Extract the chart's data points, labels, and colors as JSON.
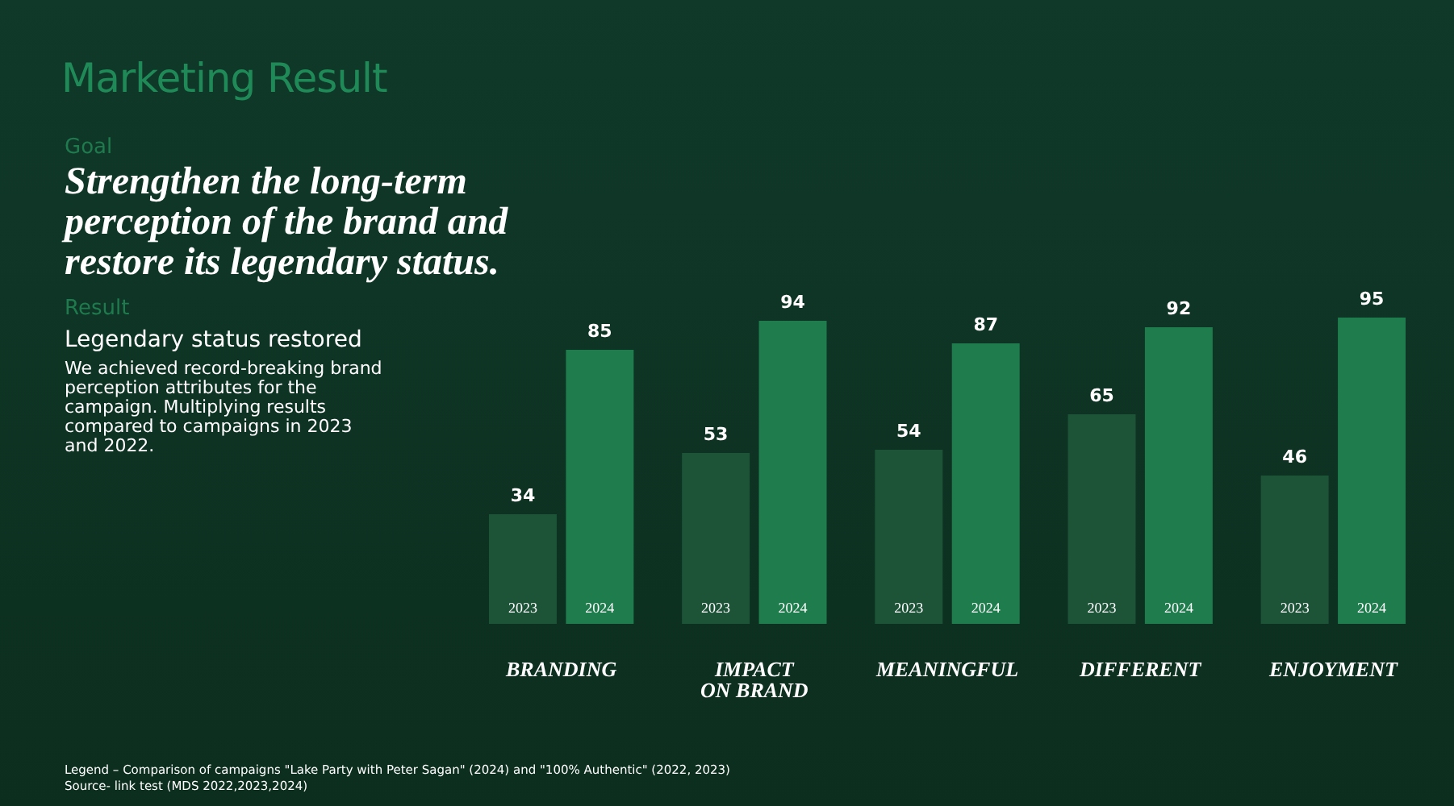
{
  "chart_data": {
    "type": "bar",
    "title": "Marketing Result",
    "annotations": [
      "Goal",
      "Strengthen the long-term perception of the brand and restore its legendary status.",
      "Result",
      "Legendary status restored",
      "We achieved record-breaking brand perception attributes for the campaign. Multiplying results compared to campaigns in 2023 and 2022.",
      "Legend – Comparison of campaigns \"Lake Party with Peter Sagan\" (2024) and \"100% Authentic\" (2022, 2023)",
      "Source- link test (MDS 2022,2023,2024)"
    ],
    "categories": [
      "BRANDING",
      "IMPACT ON BRAND",
      "MEANINGFUL",
      "DIFFERENT",
      "ENJOYMENT"
    ],
    "series": [
      {
        "name": "2023",
        "color": "#1d5438",
        "values": [
          34,
          53,
          54,
          65,
          46
        ]
      },
      {
        "name": "2024",
        "color": "#1f7d4d",
        "values": [
          85,
          94,
          87,
          92,
          95
        ]
      }
    ],
    "data_labels": true,
    "grid": false,
    "legend": false
  }
}
